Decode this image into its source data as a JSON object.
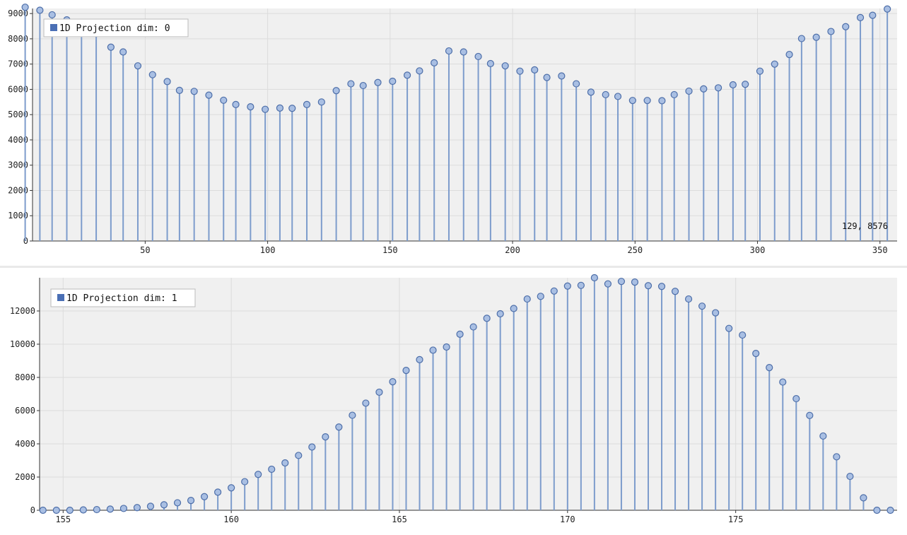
{
  "charts": [
    {
      "legend": {
        "label": "1D Projection dim: 0",
        "color": "#4a6fb5"
      },
      "readout": "129, 8576"
    },
    {
      "legend": {
        "label": "1D Projection dim: 1",
        "color": "#4a6fb5"
      }
    }
  ],
  "colors": {
    "plot_bg": "#f0f0f0",
    "grid": "#dcdcdc",
    "stem": "#7d9ccc",
    "marker_fill": "#a9bfe3",
    "marker_stroke": "#4d6ea8",
    "axis": "#333333"
  },
  "chart_data": [
    {
      "type": "scatter",
      "style": "stem",
      "series": [
        {
          "x": [
            1,
            7,
            12,
            18,
            24,
            30,
            36,
            41,
            47,
            53,
            59,
            64,
            70,
            76,
            82,
            87,
            93,
            99,
            105,
            110,
            116,
            122,
            128,
            134,
            139,
            145,
            151,
            157,
            162,
            168,
            174,
            180,
            186,
            191,
            197,
            203,
            209,
            214,
            220,
            226,
            232,
            238,
            243,
            249,
            255,
            261,
            266,
            272,
            278,
            284,
            290,
            295,
            301,
            307,
            313,
            318,
            324,
            330,
            336,
            342,
            347,
            353
          ],
          "y": [
            9250,
            9130,
            8950,
            8750,
            8530,
            8200,
            7670,
            7480,
            6930,
            6580,
            6310,
            5960,
            5920,
            5770,
            5570,
            5400,
            5310,
            5210,
            5260,
            5250,
            5400,
            5500,
            5950,
            6220,
            6150,
            6270,
            6320,
            6560,
            6730,
            7050,
            7520,
            7480,
            7300,
            7020,
            6930,
            6720,
            6770,
            6470,
            6530,
            6220,
            5890,
            5790,
            5720,
            5560,
            5560,
            5550,
            5790,
            5930,
            6020,
            6060,
            6180,
            6200,
            6720,
            7000,
            7380,
            8010,
            8060,
            8290,
            8480,
            8840,
            8930,
            9180
          ]
        }
      ],
      "xlim": [
        4,
        357
      ],
      "ylim": [
        0,
        9200
      ],
      "x_ticks": [
        50,
        100,
        150,
        200,
        250,
        300,
        350
      ],
      "y_ticks": [
        0,
        1000,
        2000,
        3000,
        4000,
        5000,
        6000,
        7000,
        8000,
        9000
      ],
      "legend_position": "top-left",
      "grid": true
    },
    {
      "type": "scatter",
      "style": "stem",
      "series": [
        {
          "x": [
            154.4,
            154.8,
            155.2,
            155.6,
            156.0,
            156.4,
            156.8,
            157.2,
            157.6,
            158.0,
            158.4,
            158.8,
            159.2,
            159.6,
            160.0,
            160.4,
            160.8,
            161.2,
            161.6,
            162.0,
            162.4,
            162.8,
            163.2,
            163.6,
            164.0,
            164.4,
            164.8,
            165.2,
            165.6,
            166.0,
            166.4,
            166.8,
            167.2,
            167.6,
            168.0,
            168.4,
            168.8,
            169.2,
            169.6,
            170.0,
            170.4,
            170.8,
            171.2,
            171.6,
            172.0,
            172.4,
            172.8,
            173.2,
            173.6,
            174.0,
            174.4,
            174.8,
            175.2,
            175.6,
            176.0,
            176.4,
            176.8,
            177.2,
            177.6,
            178.0,
            178.4,
            178.8,
            179.2,
            179.6
          ],
          "y": [
            0,
            0,
            0,
            20,
            40,
            70,
            110,
            160,
            240,
            330,
            450,
            590,
            820,
            1090,
            1350,
            1720,
            2160,
            2470,
            2850,
            3300,
            3810,
            4420,
            5010,
            5720,
            6450,
            7110,
            7740,
            8420,
            9070,
            9640,
            9830,
            10600,
            11040,
            11560,
            11830,
            12150,
            12720,
            12880,
            13200,
            13500,
            13540,
            14000,
            13630,
            13780,
            13740,
            13520,
            13480,
            13180,
            12720,
            12290,
            11890,
            10950,
            10550,
            9440,
            8590,
            7720,
            6720,
            5710,
            4470,
            3220,
            2040,
            750,
            0,
            0
          ]
        }
      ],
      "xlim": [
        154.3,
        179.8
      ],
      "ylim": [
        0,
        14000
      ],
      "x_ticks": [
        155,
        160,
        165,
        170,
        175
      ],
      "y_ticks": [
        0,
        2000,
        4000,
        6000,
        8000,
        10000,
        12000
      ],
      "legend_position": "top-left",
      "grid": true
    }
  ]
}
